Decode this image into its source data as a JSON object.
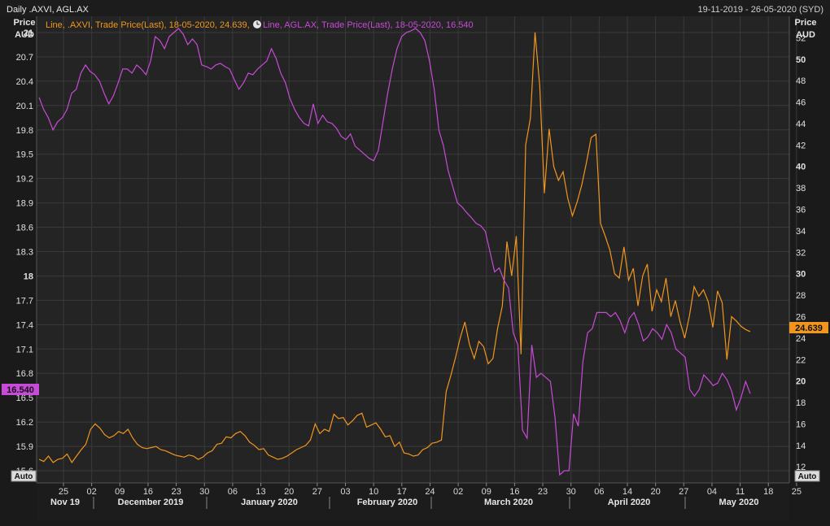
{
  "header": {
    "title": "Daily .AXVI, AGL.AX",
    "date_range": "19-11-2019 - 26-05-2020 (SYD)"
  },
  "legend": {
    "series1": "Line, .AXVI, Trade Price(Last), 18-05-2020, 24.639,",
    "series2": "Line, AGL.AX, Trade Price(Last), 18-05-2020, 16.540"
  },
  "axes": {
    "left_label_1": "Price",
    "left_label_2": "AUD",
    "right_label_1": "Price",
    "right_label_2": "AUD",
    "left_auto": "Auto",
    "right_auto": "Auto"
  },
  "colors": {
    "axvi": "#f0961e",
    "agl": "#c84ad8",
    "background": "#242424",
    "grid": "#3a3a3a"
  },
  "chart_data": {
    "type": "line",
    "x_range": [
      "19-11-2019",
      "26-05-2020"
    ],
    "right_axis": {
      "ylim": [
        10.5,
        54
      ],
      "ticks": [
        12,
        14,
        16,
        18,
        20,
        22,
        24,
        26,
        28,
        30,
        32,
        34,
        36,
        38,
        40,
        42,
        44,
        46,
        48,
        50,
        52
      ],
      "last_value_label": "24.639"
    },
    "left_axis": {
      "ylim": [
        15.45,
        21.2
      ],
      "ticks": [
        "15.6",
        "15.9",
        "16.2",
        "16.5",
        "16.8",
        "17.1",
        "17.4",
        "17.7",
        "18",
        "18.3",
        "18.6",
        "18.9",
        "19.2",
        "19.5",
        "19.8",
        "20.1",
        "20.4",
        "20.7",
        "21"
      ],
      "last_value_label": "16.540"
    },
    "x_ticks": [
      "25",
      "02",
      "09",
      "16",
      "23",
      "30",
      "06",
      "13",
      "20",
      "27",
      "03",
      "10",
      "17",
      "24",
      "02",
      "09",
      "16",
      "23",
      "30",
      "06",
      "14",
      "20",
      "27",
      "04",
      "11",
      "18",
      "25"
    ],
    "month_labels": [
      "Nov 19",
      "December 2019",
      "January 2020",
      "February 2020",
      "March 2020",
      "April 2020",
      "May 2020"
    ],
    "series": [
      {
        "name": ".AXVI",
        "axis": "right",
        "values": [
          12.7,
          12.5,
          13.0,
          12.4,
          12.7,
          12.8,
          13.2,
          12.4,
          13.0,
          13.6,
          14.1,
          15.5,
          16.0,
          15.6,
          15.0,
          14.7,
          14.9,
          15.3,
          15.1,
          15.5,
          14.7,
          14.1,
          13.8,
          13.7,
          13.8,
          13.9,
          13.6,
          13.5,
          13.3,
          13.1,
          13.0,
          12.9,
          13.1,
          13.0,
          12.7,
          12.9,
          13.3,
          13.5,
          14.1,
          14.2,
          14.8,
          14.7,
          15.1,
          15.3,
          14.9,
          14.3,
          14.0,
          13.6,
          13.7,
          13.1,
          12.9,
          12.7,
          12.8,
          13.0,
          13.3,
          13.6,
          13.8,
          14.0,
          14.5,
          16.0,
          15.1,
          15.5,
          15.3,
          16.9,
          16.5,
          16.6,
          15.9,
          16.3,
          16.8,
          17.0,
          15.7,
          15.9,
          16.1,
          15.5,
          14.8,
          14.9,
          13.9,
          14.3,
          13.3,
          13.2,
          13.0,
          13.1,
          13.6,
          13.8,
          14.2,
          14.3,
          14.5,
          19.0,
          20.5,
          22.2,
          24.0,
          25.5,
          23.4,
          22.1,
          23.7,
          23.2,
          21.6,
          22.1,
          24.9,
          27.0,
          33.0,
          29.8,
          33.5,
          22.5,
          42.0,
          44.5,
          52.5,
          47.5,
          37.5,
          43.5,
          40.0,
          38.7,
          39.5,
          37.0,
          35.4,
          36.7,
          38.3,
          40.4,
          42.7,
          43.0,
          34.7,
          33.5,
          32.2,
          30.0,
          29.6,
          32.5,
          29.4,
          30.5,
          27.0,
          29.8,
          30.9,
          26.5,
          28.5,
          27.4,
          29.6,
          26.0,
          27.5,
          25.5,
          24.0,
          26.1,
          28.8,
          27.9,
          28.5,
          27.4,
          25.0,
          28.4,
          27.3,
          22.0,
          26.0,
          25.6,
          25.1,
          24.8,
          24.6
        ]
      },
      {
        "name": "AGL.AX",
        "axis": "left",
        "values": [
          20.2,
          20.05,
          19.95,
          19.8,
          19.9,
          19.95,
          20.05,
          20.25,
          20.3,
          20.5,
          20.6,
          20.52,
          20.48,
          20.4,
          20.25,
          20.12,
          20.22,
          20.38,
          20.55,
          20.55,
          20.5,
          20.6,
          20.55,
          20.48,
          20.65,
          20.95,
          20.9,
          20.8,
          20.95,
          21.0,
          21.05,
          20.98,
          20.85,
          20.92,
          20.85,
          20.6,
          20.58,
          20.55,
          20.6,
          20.62,
          20.58,
          20.55,
          20.42,
          20.3,
          20.38,
          20.5,
          20.48,
          20.55,
          20.6,
          20.65,
          20.8,
          20.68,
          20.5,
          20.38,
          20.18,
          20.05,
          19.95,
          19.88,
          19.85,
          20.12,
          19.88,
          19.98,
          19.9,
          19.88,
          19.82,
          19.72,
          19.68,
          19.75,
          19.6,
          19.55,
          19.5,
          19.45,
          19.42,
          19.55,
          19.9,
          20.25,
          20.55,
          20.8,
          20.95,
          21.0,
          21.02,
          21.05,
          21.0,
          20.9,
          20.65,
          20.3,
          19.8,
          19.6,
          19.3,
          19.1,
          18.9,
          18.85,
          18.78,
          18.72,
          18.65,
          18.62,
          18.55,
          18.3,
          18.05,
          18.1,
          17.95,
          17.85,
          17.3,
          17.15,
          16.1,
          16.0,
          17.15,
          16.75,
          16.8,
          16.75,
          16.7,
          16.25,
          15.55,
          15.6,
          15.6,
          16.3,
          16.15,
          16.95,
          17.3,
          17.35,
          17.55,
          17.55,
          17.55,
          17.5,
          17.55,
          17.45,
          17.3,
          17.48,
          17.55,
          17.4,
          17.2,
          17.25,
          17.35,
          17.3,
          17.22,
          17.4,
          17.3,
          17.1,
          17.05,
          17.0,
          16.6,
          16.52,
          16.6,
          16.78,
          16.72,
          16.65,
          16.68,
          16.8,
          16.72,
          16.58,
          16.35,
          16.5,
          16.7,
          16.55
        ]
      }
    ]
  }
}
